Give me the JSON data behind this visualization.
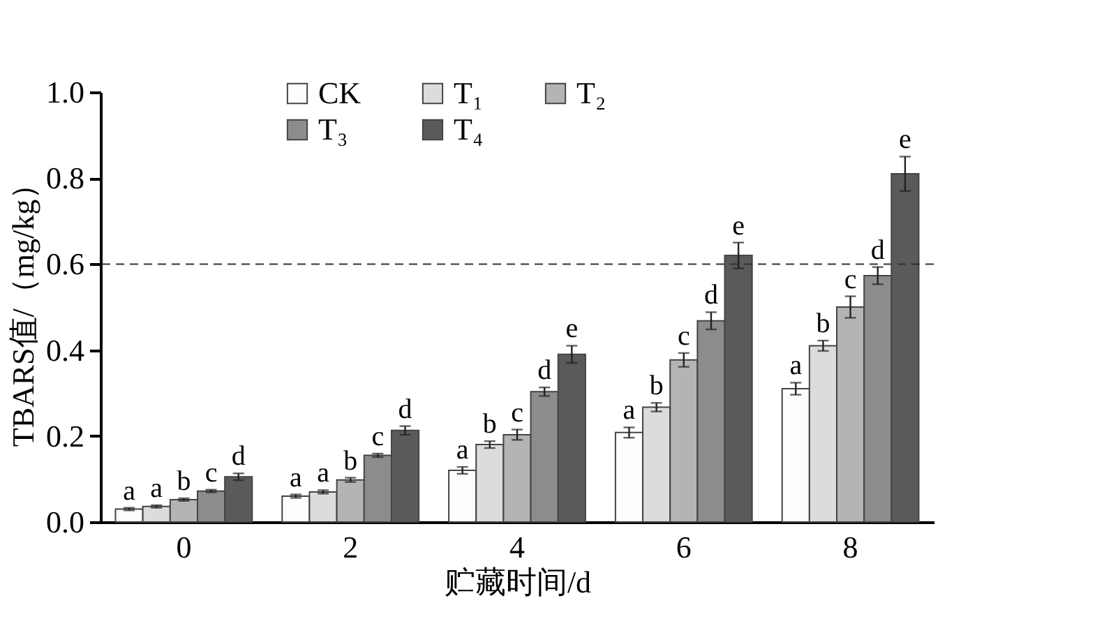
{
  "chart_data": {
    "type": "bar",
    "xlabel": "贮藏时间/d",
    "ylabel": "TBARS值/（mg/kg）",
    "categories": [
      "0",
      "2",
      "4",
      "6",
      "8"
    ],
    "series": [
      {
        "name": "CK",
        "color": "#fdfdfd",
        "values": [
          0.03,
          0.06,
          0.12,
          0.208,
          0.31
        ],
        "errors": [
          0.003,
          0.004,
          0.008,
          0.012,
          0.014
        ],
        "value_labels": [
          "a",
          "a",
          "a",
          "a",
          "a"
        ]
      },
      {
        "name": "T₁",
        "color": "#dcdcdc",
        "values": [
          0.036,
          0.07,
          0.18,
          0.267,
          0.41
        ],
        "errors": [
          0.003,
          0.004,
          0.008,
          0.01,
          0.012
        ],
        "value_labels": [
          "a",
          "a",
          "b",
          "b",
          "b"
        ]
      },
      {
        "name": "T₂",
        "color": "#b4b4b4",
        "values": [
          0.052,
          0.098,
          0.203,
          0.377,
          0.5
        ],
        "errors": [
          0.003,
          0.005,
          0.012,
          0.016,
          0.025
        ],
        "value_labels": [
          "b",
          "b",
          "c",
          "c",
          "c"
        ]
      },
      {
        "name": "T₃",
        "color": "#8c8c8c",
        "values": [
          0.072,
          0.155,
          0.303,
          0.468,
          0.573
        ],
        "errors": [
          0.003,
          0.004,
          0.01,
          0.02,
          0.02
        ],
        "value_labels": [
          "c",
          "c",
          "d",
          "d",
          "d"
        ]
      },
      {
        "name": "T₄",
        "color": "#5a5a5a",
        "values": [
          0.105,
          0.213,
          0.39,
          0.62,
          0.81
        ],
        "errors": [
          0.008,
          0.01,
          0.02,
          0.03,
          0.04
        ],
        "value_labels": [
          "d",
          "d",
          "e",
          "e",
          "e"
        ]
      }
    ],
    "ylim": [
      0,
      1.0
    ],
    "yticks": [
      {
        "value": 0,
        "label": "0.0"
      },
      0.2,
      0.4,
      0.6,
      0.8,
      {
        "value": 1.0,
        "label": "1.0"
      }
    ],
    "ref_lines": [
      {
        "axis": "y",
        "value": 0.6,
        "color": "#333333",
        "line_style": "dashed"
      }
    ],
    "legend": "top",
    "grid": false
  }
}
